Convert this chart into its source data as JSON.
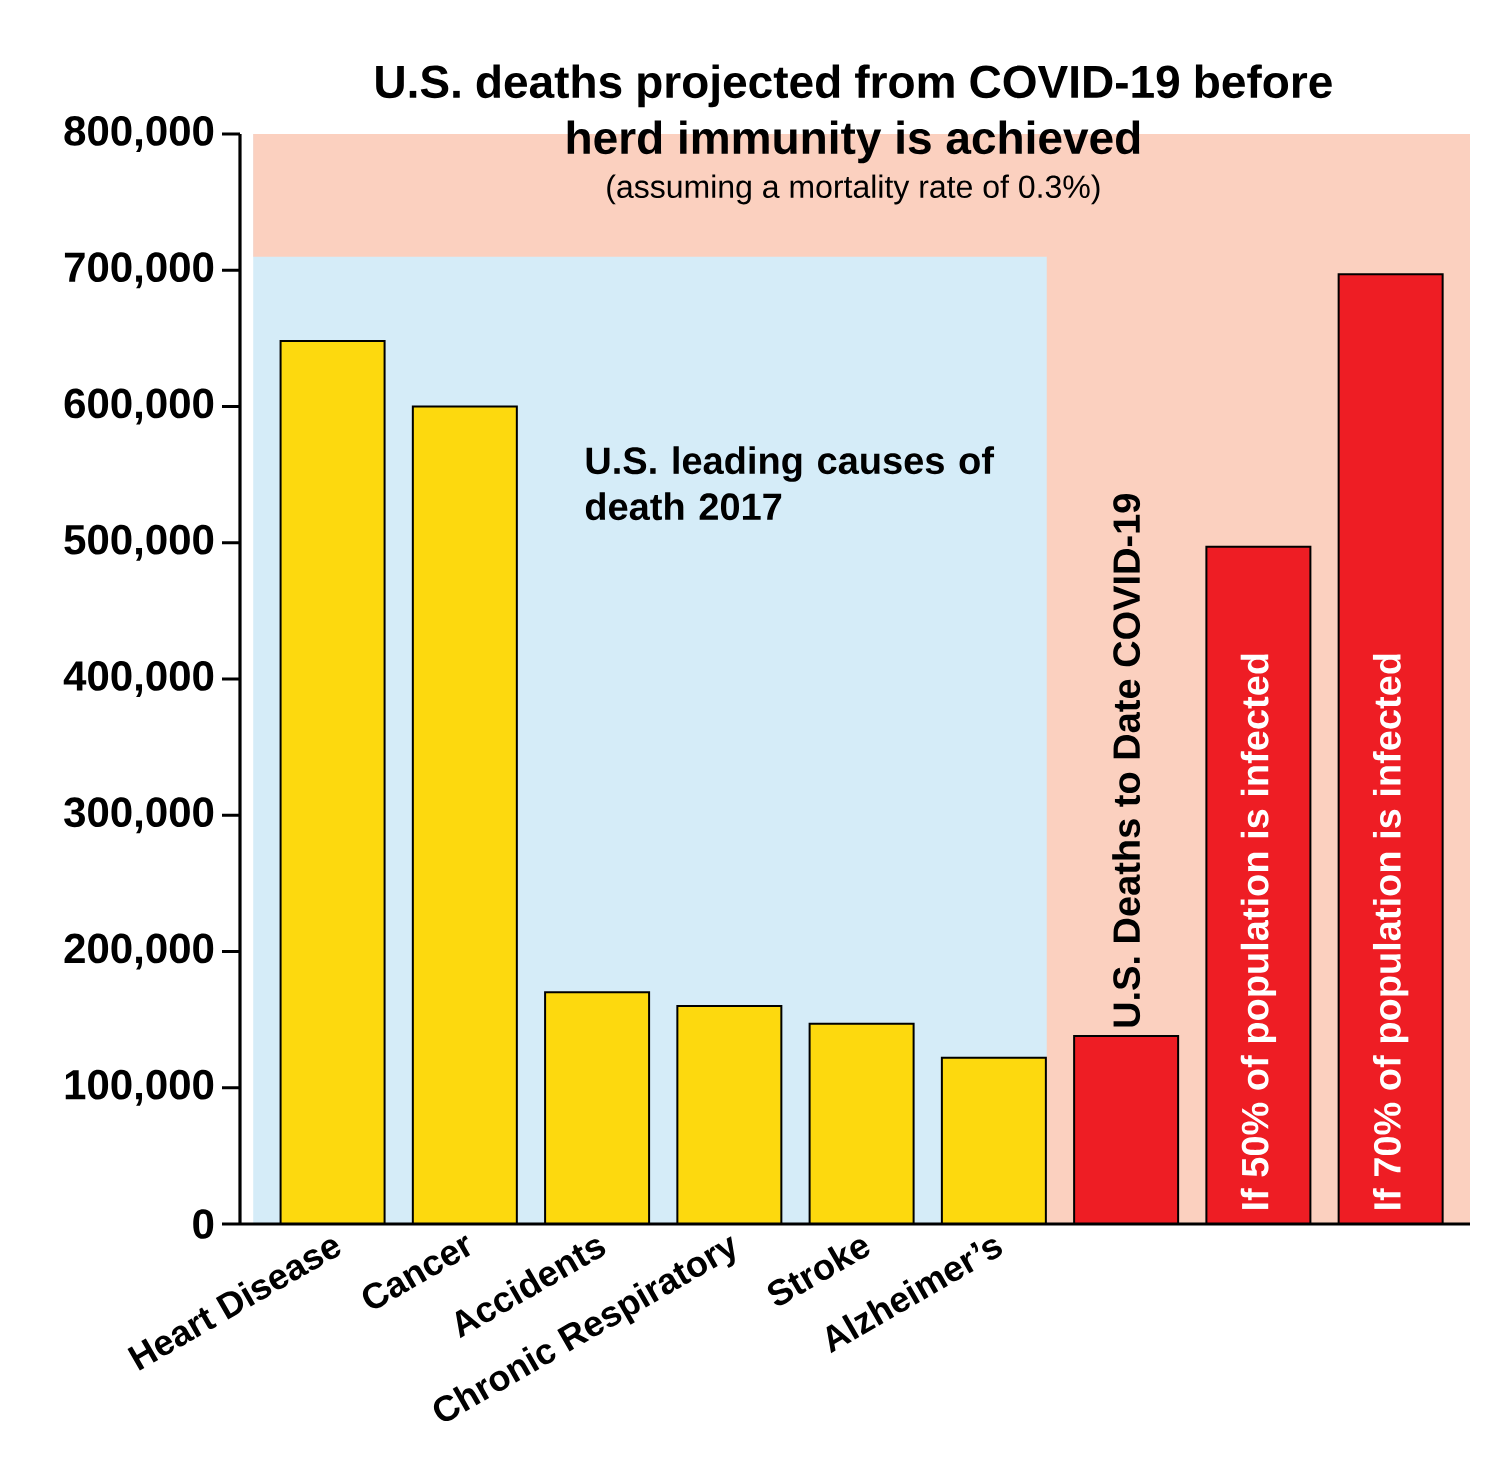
{
  "chart_data": {
    "type": "bar",
    "title": "U.S. deaths projected from COVID-19 before herd immunity is achieved",
    "subtitle": "(assuming a mortality rate of 0.3%)",
    "categories": [
      "Heart Disease",
      "Cancer",
      "Accidents",
      "Chronic Respiratory",
      "Stroke",
      "Alzheimer’s",
      "U.S. Deaths to Date COVID-19",
      "If 50% of population is infected",
      "If 70% of population is infected"
    ],
    "series": [
      {
        "name": "U.S. leading causes of death 2017",
        "color": "#fdd90e",
        "values": [
          648000,
          600000,
          170000,
          160000,
          147000,
          122000,
          null,
          null,
          null
        ]
      },
      {
        "color": "#ee1d24",
        "values": [
          null,
          null,
          null,
          null,
          null,
          null,
          138000,
          497000,
          697000
        ]
      }
    ],
    "ylim": [
      0,
      800000
    ],
    "yticks": [
      0,
      {
        "value": 100000,
        "label": "100,000"
      },
      {
        "value": 200000,
        "label": "200,000"
      },
      {
        "value": 300000,
        "label": "300,000"
      },
      {
        "value": 400000,
        "label": "400,000"
      },
      {
        "value": 500000,
        "label": "500,000"
      },
      {
        "value": 600000,
        "label": "600,000"
      },
      {
        "value": 700000,
        "label": "700,000"
      },
      {
        "value": 800000,
        "label": "800,000"
      }
    ],
    "bands": [
      {
        "axis": "x",
        "from": "Heart Disease",
        "to": "Alzheimer’s",
        "color": "#d5ecf8"
      },
      {
        "axis": "x",
        "from": "U.S. Deaths to Date COVID-19",
        "to": "If 70% of population is infected",
        "color": "#fbd0bf"
      },
      {
        "axis": "y",
        "from": 710000,
        "to": 800000,
        "color": "#fbd0bf"
      }
    ]
  }
}
